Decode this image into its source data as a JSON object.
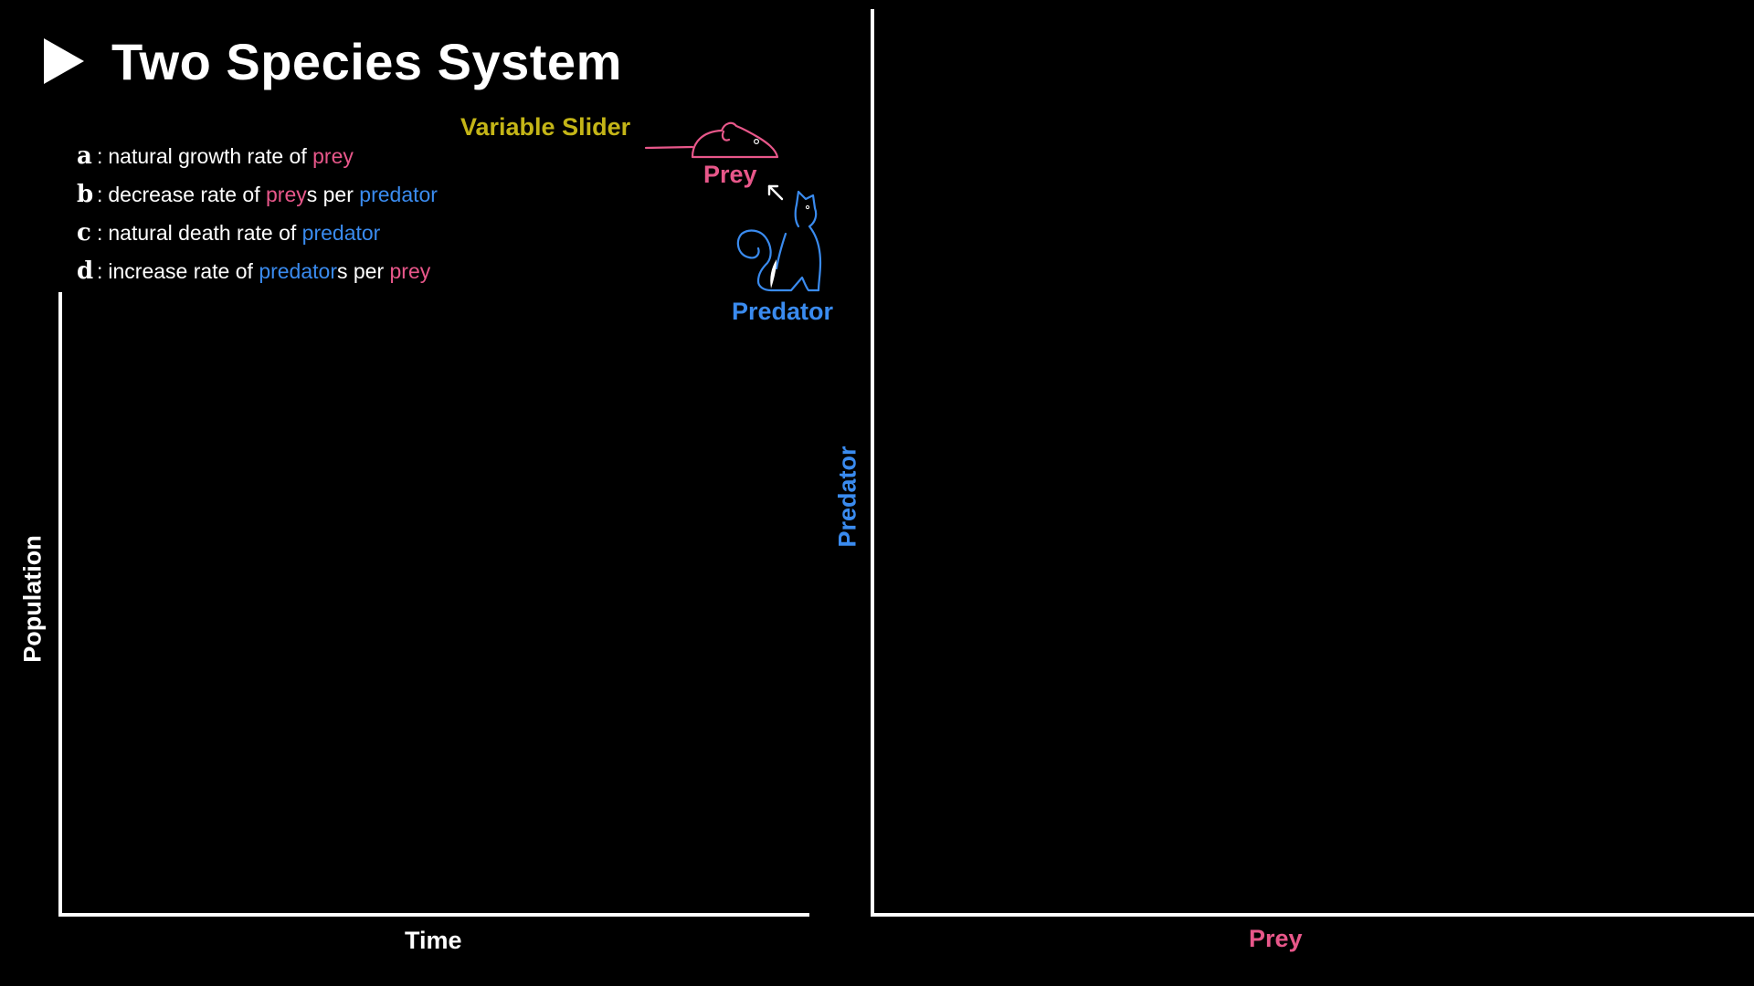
{
  "title": "Two Species System",
  "slider_label": "Variable Slider",
  "definitions": [
    {
      "letter": "a",
      "parts": [
        {
          "text": "natural growth rate of ",
          "role": "plain"
        },
        {
          "text": "prey",
          "role": "prey"
        }
      ]
    },
    {
      "letter": "b",
      "parts": [
        {
          "text": "decrease rate of ",
          "role": "plain"
        },
        {
          "text": "prey",
          "role": "prey"
        },
        {
          "text": "s per ",
          "role": "plain"
        },
        {
          "text": "predator",
          "role": "predator"
        }
      ]
    },
    {
      "letter": "c",
      "parts": [
        {
          "text": "natural death rate of ",
          "role": "plain"
        },
        {
          "text": "predator",
          "role": "predator"
        }
      ]
    },
    {
      "letter": "d",
      "parts": [
        {
          "text": "increase rate of ",
          "role": "plain"
        },
        {
          "text": "predator",
          "role": "predator"
        },
        {
          "text": "s per ",
          "role": "plain"
        },
        {
          "text": "prey",
          "role": "prey"
        }
      ]
    }
  ],
  "legend": {
    "prey_label": "Prey",
    "predator_label": "Predator",
    "prey_icon": "mouse-icon",
    "predator_icon": "cat-icon",
    "arrow_icon": "arrow-up-left-icon"
  },
  "time_plot": {
    "xlabel": "Time",
    "ylabel": "Population"
  },
  "phase_plot": {
    "xlabel": "Prey",
    "ylabel": "Predator"
  },
  "colors": {
    "background": "#000000",
    "text": "#ffffff",
    "prey": "#e8578a",
    "predator": "#3a8bef",
    "slider": "#c4b517"
  }
}
